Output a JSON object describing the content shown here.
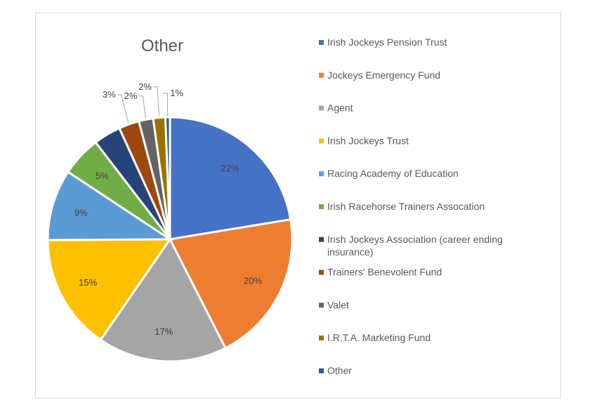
{
  "chart_data": {
    "type": "pie",
    "title": "Other",
    "categories": [
      "Irish Jockeys Pension Trust",
      "Jockeys Emergency Fund",
      "Agent",
      "Irish Jockeys Trust",
      "Racing Academy of Education",
      "Irish Racehorse Trainers Assocation",
      "Irish Jockeys Association (career ending insurance)",
      "Trainers' Benevolent Fund",
      "Valet",
      "I.R.T.A. Marketing Fund",
      "Other"
    ],
    "values": [
      22.4,
      20.1,
      17.1,
      15.3,
      9.4,
      5.3,
      3.6,
      2.7,
      1.9,
      1.6,
      0.6
    ],
    "data_labels": [
      "22%",
      "20%",
      "17%",
      "15%",
      "9%",
      "5%",
      "",
      "3%",
      "2%",
      "2%",
      "1%"
    ],
    "colors": [
      "#4472C4",
      "#ED7D31",
      "#A5A5A5",
      "#FFC000",
      "#5B9BD5",
      "#70AD47",
      "#264478",
      "#9E480E",
      "#636363",
      "#997300",
      "#255E91"
    ],
    "legend_position": "right"
  }
}
